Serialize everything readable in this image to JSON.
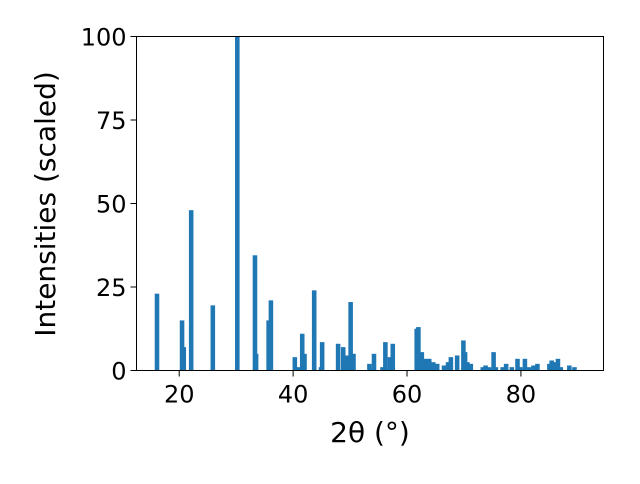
{
  "chart_data": {
    "type": "bar",
    "title": "",
    "xlabel": "2θ (°)",
    "ylabel": "Intensities (scaled)",
    "xlim": [
      12.5,
      94.5
    ],
    "ylim": [
      0,
      100
    ],
    "xticks": [
      20,
      40,
      60,
      80
    ],
    "yticks": [
      0,
      25,
      50,
      75,
      100
    ],
    "bar_width_deg": 0.8,
    "grid": false,
    "legend": "none",
    "bar_color": "#1f77b4",
    "x": [
      16.1,
      20.5,
      20.8,
      22.1,
      25.9,
      30.2,
      33.3,
      33.5,
      35.7,
      36.1,
      40.3,
      41.0,
      41.6,
      42.0,
      43.7,
      44.9,
      45.1,
      47.9,
      48.8,
      49.6,
      50.1,
      50.6,
      53.4,
      54.2,
      55.7,
      56.2,
      57.0,
      57.5,
      61.7,
      62.0,
      62.6,
      63.3,
      63.9,
      64.6,
      65.3,
      66.5,
      67.2,
      67.7,
      68.8,
      69.9,
      70.2,
      70.6,
      71.2,
      73.3,
      73.8,
      74.4,
      75.2,
      75.6,
      76.8,
      77.4,
      78.4,
      79.4,
      79.9,
      80.7,
      81.4,
      82.2,
      82.9,
      85.0,
      85.4,
      86.0,
      86.5,
      87.0,
      88.5,
      89.4
    ],
    "values": [
      23,
      15,
      7,
      48,
      19.5,
      100,
      34.5,
      5,
      15,
      21,
      4,
      1,
      11,
      5,
      24,
      1,
      8.5,
      8,
      7,
      4.5,
      20.5,
      5,
      2,
      5,
      1,
      8.5,
      4,
      8,
      12.5,
      13,
      5.5,
      3.5,
      3.5,
      2.5,
      2,
      1.5,
      2.5,
      4,
      4.5,
      9,
      5.5,
      2.5,
      2,
      1,
      1.5,
      1,
      5.5,
      1,
      1,
      2,
      1,
      3.5,
      1,
      3.5,
      1,
      1.5,
      2,
      2,
      3,
      2.5,
      3.5,
      1,
      1.5,
      1
    ]
  }
}
